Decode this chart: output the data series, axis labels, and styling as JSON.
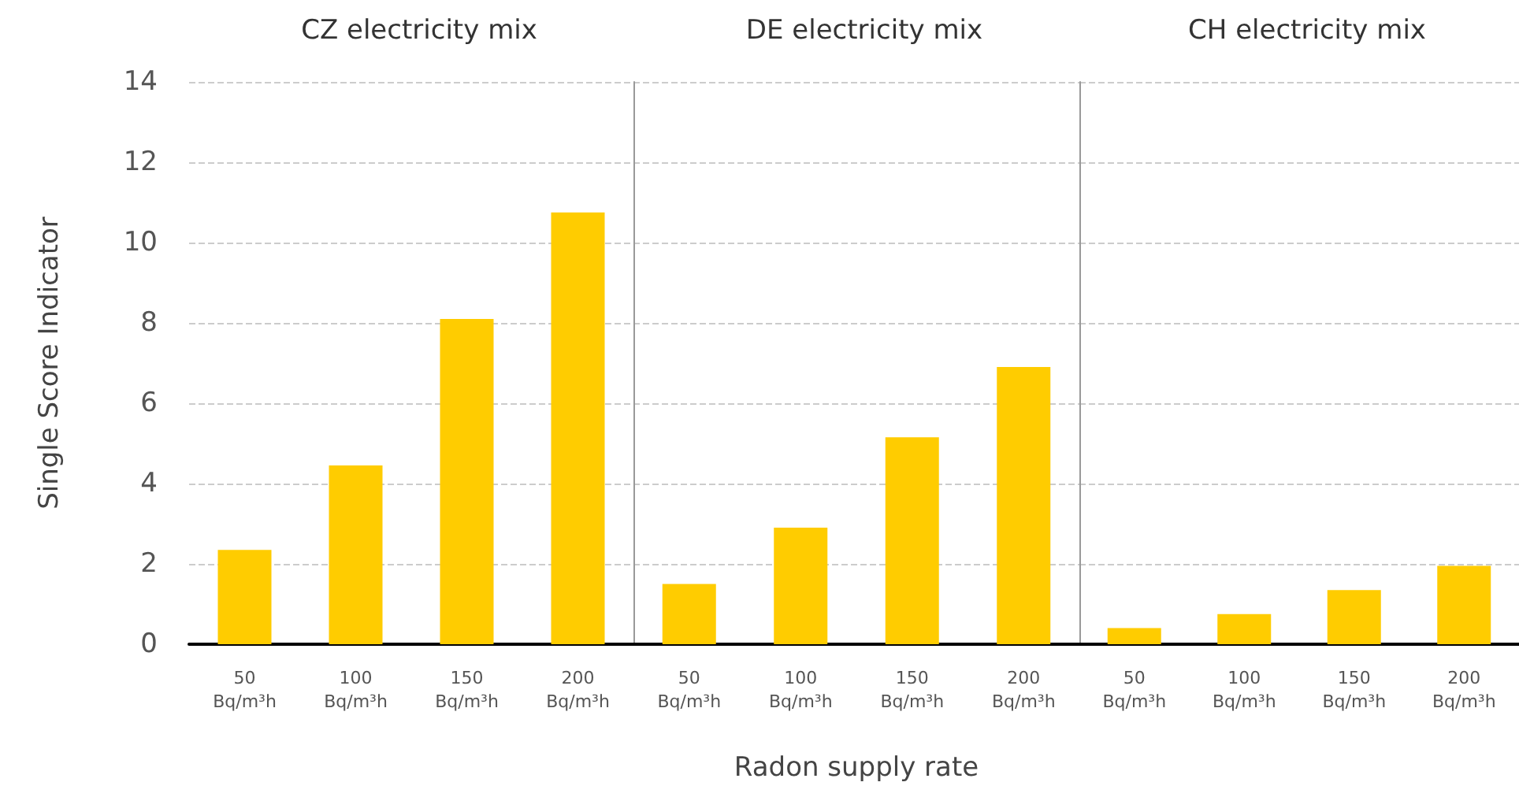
{
  "chart_data": [
    {
      "type": "bar",
      "title": "CZ electricity mix",
      "ylabel": "Single Score Indicator",
      "categories": [
        "50 Bq/m³h",
        "100 Bq/m³h",
        "150 Bq/m³h",
        "200 Bq/m³h"
      ],
      "values": [
        2.35,
        4.45,
        8.1,
        10.75
      ],
      "color": "#ffcc00",
      "ylim": [
        0,
        14
      ],
      "yticks": [
        0,
        2,
        4,
        6,
        8,
        10,
        12,
        14
      ],
      "grid": "y"
    },
    {
      "type": "bar",
      "title": "DE electricity mix",
      "xlabel": "Radon supply rate",
      "categories": [
        "50 Bq/m³h",
        "100 Bq/m³h",
        "150 Bq/m³h",
        "200 Bq/m³h"
      ],
      "values": [
        1.5,
        2.9,
        5.15,
        6.9
      ],
      "color": "#ffcc00",
      "ylim": [
        0,
        14
      ],
      "yticks": [
        0,
        2,
        4,
        6,
        8,
        10,
        12,
        14
      ],
      "grid": "y",
      "tick_labels": "x"
    },
    {
      "type": "bar",
      "title": "CH electricity mix",
      "categories": [
        "50 Bq/m³h",
        "100 Bq/m³h",
        "150 Bq/m³h",
        "200 Bq/m³h"
      ],
      "values": [
        0.4,
        0.75,
        1.35,
        1.95
      ],
      "color": "#ffcc00",
      "ylim": [
        0,
        14
      ],
      "yticks": [
        0,
        2,
        4,
        6,
        8,
        10,
        12,
        14
      ],
      "grid": "y",
      "tick_labels": "x"
    }
  ]
}
